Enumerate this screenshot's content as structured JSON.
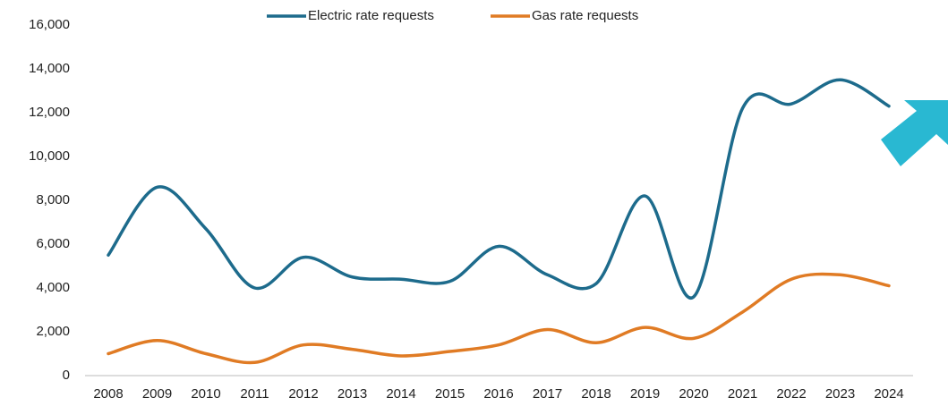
{
  "chart_data": {
    "type": "line",
    "categories": [
      "2008",
      "2009",
      "2010",
      "2011",
      "2012",
      "2013",
      "2014",
      "2015",
      "2016",
      "2017",
      "2018",
      "2019",
      "2020",
      "2021",
      "2022",
      "2023",
      "2024"
    ],
    "series": [
      {
        "name": "Electric rate requests",
        "color": "#1d6b8c",
        "values": [
          5500,
          8600,
          6700,
          4000,
          5400,
          4500,
          4400,
          4300,
          5900,
          4600,
          4200,
          8200,
          3600,
          12200,
          12400,
          13500,
          12300
        ]
      },
      {
        "name": "Gas rate requests",
        "color": "#e07b24",
        "values": [
          1000,
          1600,
          1000,
          600,
          1400,
          1200,
          900,
          1100,
          1400,
          2100,
          1500,
          2200,
          1700,
          2900,
          4400,
          4600,
          4100
        ]
      }
    ],
    "ylim": [
      0,
      16000
    ],
    "yticks": [
      0,
      {
        "value": 2000,
        "label": "2,000"
      },
      {
        "value": 4000,
        "label": "4,000"
      },
      {
        "value": 6000,
        "label": "6,000"
      },
      {
        "value": 8000,
        "label": "8,000"
      },
      {
        "value": 10000,
        "label": "10,000"
      },
      {
        "value": 12000,
        "label": "12,000"
      },
      {
        "value": 14000,
        "label": "14,000"
      },
      {
        "value": 16000,
        "label": "16,000"
      }
    ],
    "grid": false,
    "legend": "top"
  }
}
